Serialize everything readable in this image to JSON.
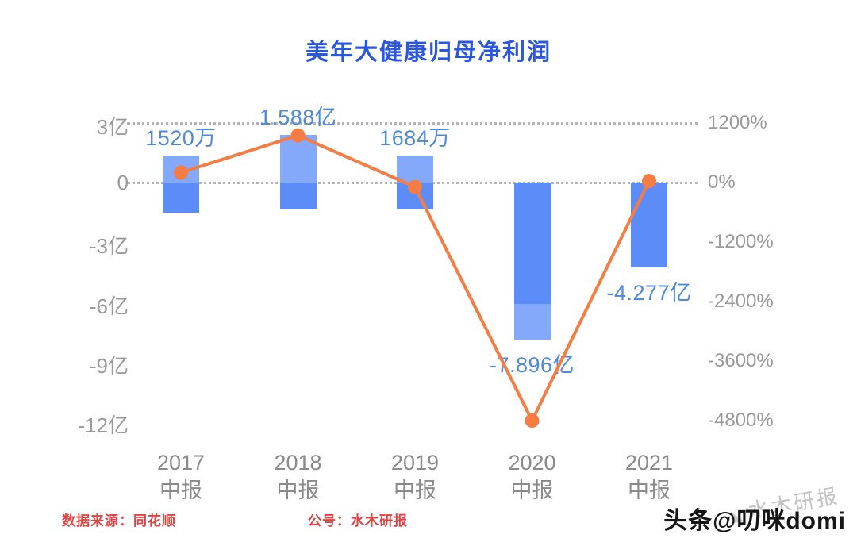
{
  "title": "美年大健康归母净利润",
  "footer": {
    "source_label": "数据来源：同花顺",
    "account_label": "公号：水木研报",
    "watermark": "水木研报",
    "byline": "头条@叨咪domi"
  },
  "colors": {
    "title": "#2b57e0",
    "bar": "#5b8cf8",
    "bar_light": "#84a9fa",
    "line": "#f57d44",
    "value_label": "#4e8ad9",
    "axis_text": "#9a9a9a",
    "category_text": "#8a8a8a",
    "footer_red": "#e04343"
  },
  "chart_data": {
    "type": "bar+line",
    "title": "美年大健康归母净利润",
    "categories": [
      "2017 中报",
      "2018 中报",
      "2019 中报",
      "2020 中报",
      "2021 中报"
    ],
    "category_lines": [
      [
        "2017",
        "中报"
      ],
      [
        "2018",
        "中报"
      ],
      [
        "2019",
        "中报"
      ],
      [
        "2020",
        "中报"
      ],
      [
        "2021",
        "中报"
      ]
    ],
    "bar_series": {
      "name": "归母净利润",
      "unit": "亿元",
      "values_yi": [
        0.152,
        1.588,
        0.1684,
        -7.896,
        -4.277
      ],
      "data_labels": [
        "1520万",
        "1.588亿",
        "1684万",
        "-7.896亿",
        "-4.277亿"
      ]
    },
    "line_series": {
      "axis": "right",
      "unit": "%",
      "values_pct": [
        200,
        950,
        -90,
        -4800,
        30
      ]
    },
    "left_axis": {
      "unit": "亿",
      "tick_labels": [
        "3亿",
        "0",
        "-3亿",
        "-6亿",
        "-9亿",
        "-12亿"
      ],
      "tick_values_yi": [
        3,
        0,
        -3,
        -6,
        -9,
        -12
      ],
      "min": -12,
      "max": 3
    },
    "right_axis": {
      "unit": "%",
      "tick_labels": [
        "1200%",
        "0%",
        "-1200%",
        "-2400%",
        "-3600%",
        "-4800%"
      ],
      "tick_values_pct": [
        1200,
        0,
        -1200,
        -2400,
        -3600,
        -4800
      ],
      "min": -4800,
      "max": 1200
    },
    "gridlines": {
      "style": "dotted",
      "at_yi": [
        3,
        0
      ]
    },
    "bar_visual_spans_yi": [
      {
        "top": 1.35,
        "bottom": -1.5,
        "light_range": [
          1.35,
          0
        ]
      },
      {
        "top": 2.4,
        "bottom": -1.35,
        "light_range": [
          2.4,
          0
        ]
      },
      {
        "top": 1.35,
        "bottom": -1.35,
        "light_range": [
          1.35,
          0
        ]
      },
      {
        "top": 0,
        "bottom": -7.896,
        "light_range": [
          -6.1,
          -7.896
        ]
      },
      {
        "top": 0,
        "bottom": -4.277,
        "light_range": null
      }
    ]
  }
}
